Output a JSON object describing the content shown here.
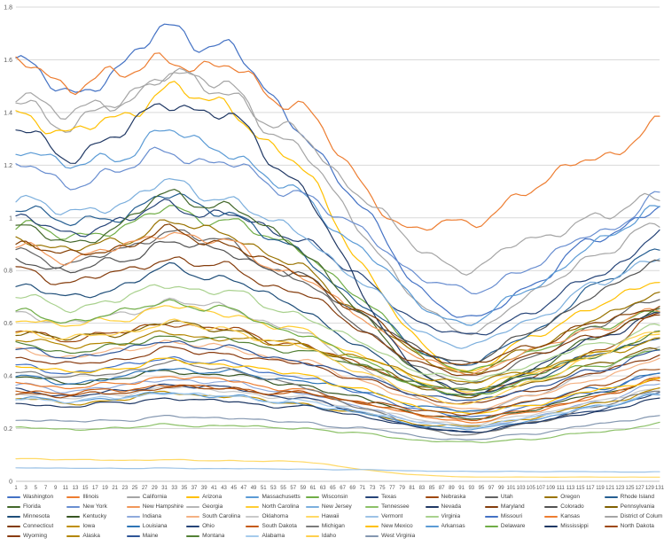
{
  "chart_data": {
    "type": "line",
    "title": "",
    "xlabel": "",
    "ylabel": "",
    "x_range": [
      1,
      131
    ],
    "ylim": [
      0,
      1.8
    ],
    "grid": "horizontal",
    "legend_position": "bottom",
    "background": "#FFFFFF",
    "gridline_color": "#D9D9D9",
    "axis_line_color": "#BFBFBF",
    "tick_label_color": "#595959",
    "y_ticks": [
      "0",
      "0.2",
      "0.4",
      "0.6",
      "0.8",
      "1",
      "1.2",
      "1.4",
      "1.6",
      "1.8"
    ],
    "x_tick_labels": [
      1,
      3,
      5,
      7,
      9,
      11,
      13,
      15,
      17,
      19,
      21,
      23,
      25,
      27,
      29,
      31,
      33,
      35,
      37,
      39,
      41,
      43,
      45,
      47,
      49,
      51,
      53,
      55,
      57,
      59,
      61,
      63,
      65,
      67,
      69,
      71,
      73,
      75,
      77,
      79,
      81,
      83,
      85,
      87,
      89,
      91,
      93,
      95,
      97,
      99,
      101,
      103,
      105,
      107,
      109,
      111,
      113,
      115,
      117,
      119,
      121,
      123,
      125,
      127,
      129,
      131
    ],
    "keypoint_x": [
      1,
      15,
      30,
      45,
      60,
      75,
      90,
      105,
      120,
      131
    ],
    "series": [
      {
        "name": "Washington",
        "color": "#4472C4",
        "keypoints": [
          1.56,
          1.5,
          1.68,
          1.62,
          1.3,
          0.92,
          0.63,
          0.74,
          0.94,
          1.04
        ]
      },
      {
        "name": "Illinois",
        "color": "#ED7D31",
        "keypoints": [
          1.56,
          1.53,
          1.58,
          1.55,
          1.4,
          1.02,
          0.98,
          1.1,
          1.25,
          1.35
        ]
      },
      {
        "name": "California",
        "color": "#A5A5A5",
        "keypoints": [
          1.42,
          1.38,
          1.53,
          1.47,
          1.22,
          0.84,
          0.58,
          0.7,
          0.88,
          0.97
        ]
      },
      {
        "name": "Arizona",
        "color": "#FFC000",
        "keypoints": [
          1.38,
          1.34,
          1.46,
          1.4,
          1.15,
          0.7,
          0.43,
          0.54,
          0.68,
          0.76
        ]
      },
      {
        "name": "Massachusetts",
        "color": "#5B9BD5",
        "keypoints": [
          1.25,
          1.21,
          1.3,
          1.24,
          1.06,
          0.8,
          0.61,
          0.73,
          0.92,
          1.05
        ]
      },
      {
        "name": "Wisconsin",
        "color": "#70AD47",
        "keypoints": [
          0.96,
          0.94,
          1.01,
          0.98,
          0.86,
          0.61,
          0.43,
          0.49,
          0.59,
          0.66
        ]
      },
      {
        "name": "Texas",
        "color": "#264478",
        "keypoints": [
          0.98,
          0.96,
          1.03,
          1.0,
          0.91,
          0.7,
          0.56,
          0.64,
          0.8,
          0.94
        ]
      },
      {
        "name": "Nebraska",
        "color": "#9E480E",
        "keypoints": [
          0.56,
          0.55,
          0.59,
          0.57,
          0.51,
          0.41,
          0.34,
          0.39,
          0.51,
          0.63
        ]
      },
      {
        "name": "Utah",
        "color": "#636363",
        "keypoints": [
          0.86,
          0.84,
          0.93,
          0.89,
          0.74,
          0.52,
          0.38,
          0.46,
          0.61,
          0.69
        ]
      },
      {
        "name": "Oregon",
        "color": "#997300",
        "keypoints": [
          0.91,
          0.89,
          0.96,
          0.93,
          0.79,
          0.57,
          0.42,
          0.5,
          0.63,
          0.71
        ]
      },
      {
        "name": "Rhode Island",
        "color": "#255E91",
        "keypoints": [
          1.03,
          0.99,
          1.06,
          1.01,
          0.84,
          0.6,
          0.45,
          0.56,
          0.76,
          0.89
        ]
      },
      {
        "name": "Florida",
        "color": "#43682B",
        "keypoints": [
          0.95,
          0.92,
          1.06,
          1.03,
          0.86,
          0.54,
          0.35,
          0.42,
          0.56,
          0.66
        ]
      },
      {
        "name": "New York",
        "color": "#698ED0",
        "keypoints": [
          1.18,
          1.15,
          1.23,
          1.19,
          1.08,
          0.88,
          0.73,
          0.81,
          0.96,
          1.08
        ]
      },
      {
        "name": "New Hampshire",
        "color": "#F1975A",
        "keypoints": [
          0.88,
          0.86,
          0.93,
          0.89,
          0.76,
          0.56,
          0.42,
          0.49,
          0.59,
          0.65
        ]
      },
      {
        "name": "Georgia",
        "color": "#B7B7B7",
        "keypoints": [
          0.63,
          0.61,
          0.67,
          0.65,
          0.55,
          0.38,
          0.27,
          0.32,
          0.43,
          0.51
        ]
      },
      {
        "name": "North Carolina",
        "color": "#FFCD33",
        "keypoints": [
          0.61,
          0.6,
          0.65,
          0.63,
          0.56,
          0.44,
          0.35,
          0.41,
          0.49,
          0.56
        ]
      },
      {
        "name": "New Jersey",
        "color": "#7CAFDD",
        "keypoints": [
          1.06,
          1.03,
          1.11,
          1.06,
          0.92,
          0.68,
          0.52,
          0.61,
          0.76,
          0.86
        ]
      },
      {
        "name": "Tennessee",
        "color": "#8CC168",
        "keypoints": [
          0.2,
          0.2,
          0.21,
          0.21,
          0.2,
          0.17,
          0.15,
          0.16,
          0.19,
          0.22
        ]
      },
      {
        "name": "Nevada",
        "color": "#203864",
        "keypoints": [
          1.31,
          1.26,
          1.41,
          1.36,
          1.08,
          0.58,
          0.34,
          0.42,
          0.56,
          0.63
        ]
      },
      {
        "name": "Maryland",
        "color": "#843C0C",
        "keypoints": [
          0.79,
          0.77,
          0.83,
          0.8,
          0.7,
          0.52,
          0.41,
          0.47,
          0.57,
          0.63
        ]
      },
      {
        "name": "Colorado",
        "color": "#525252",
        "keypoints": [
          0.83,
          0.81,
          0.89,
          0.86,
          0.76,
          0.58,
          0.46,
          0.56,
          0.73,
          0.83
        ]
      },
      {
        "name": "Pennsylvania",
        "color": "#7F6000",
        "keypoints": [
          0.56,
          0.55,
          0.59,
          0.57,
          0.51,
          0.41,
          0.33,
          0.37,
          0.45,
          0.51
        ]
      },
      {
        "name": "Minnesota",
        "color": "#1F4E79",
        "keypoints": [
          0.73,
          0.71,
          0.79,
          0.76,
          0.64,
          0.45,
          0.33,
          0.39,
          0.49,
          0.55
        ]
      },
      {
        "name": "Kentucky",
        "color": "#375623",
        "keypoints": [
          0.39,
          0.38,
          0.41,
          0.4,
          0.36,
          0.29,
          0.24,
          0.27,
          0.34,
          0.39
        ]
      },
      {
        "name": "Indiana",
        "color": "#8FAADC",
        "keypoints": [
          0.36,
          0.35,
          0.38,
          0.37,
          0.33,
          0.26,
          0.21,
          0.24,
          0.31,
          0.37
        ]
      },
      {
        "name": "South Carolina",
        "color": "#F4B183",
        "keypoints": [
          0.49,
          0.48,
          0.52,
          0.5,
          0.45,
          0.35,
          0.28,
          0.32,
          0.4,
          0.46
        ]
      },
      {
        "name": "Oklahoma",
        "color": "#C9C9C9",
        "keypoints": [
          0.33,
          0.32,
          0.35,
          0.34,
          0.31,
          0.26,
          0.22,
          0.25,
          0.31,
          0.35
        ]
      },
      {
        "name": "Hawaii",
        "color": "#FFD966",
        "keypoints": [
          0.085,
          0.082,
          0.08,
          0.078,
          0.072,
          0.035,
          0.018,
          0.016,
          0.016,
          0.016
        ]
      },
      {
        "name": "Vermont",
        "color": "#9DC3E6",
        "keypoints": [
          0.05,
          0.05,
          0.049,
          0.048,
          0.046,
          0.042,
          0.038,
          0.037,
          0.036,
          0.036
        ]
      },
      {
        "name": "Virginia",
        "color": "#A9D18E",
        "keypoints": [
          0.69,
          0.67,
          0.73,
          0.71,
          0.62,
          0.48,
          0.39,
          0.44,
          0.53,
          0.59
        ]
      },
      {
        "name": "Missouri",
        "color": "#4472C4",
        "keypoints": [
          0.43,
          0.42,
          0.46,
          0.44,
          0.39,
          0.31,
          0.25,
          0.28,
          0.35,
          0.41
        ]
      },
      {
        "name": "Kansas",
        "color": "#ED7D31",
        "keypoints": [
          0.37,
          0.36,
          0.39,
          0.38,
          0.34,
          0.28,
          0.23,
          0.26,
          0.33,
          0.39
        ]
      },
      {
        "name": "District of Columbia",
        "color": "#A5A5A5",
        "keypoints": [
          1.46,
          1.41,
          1.51,
          1.46,
          1.28,
          1.0,
          0.82,
          0.91,
          1.01,
          1.09
        ]
      },
      {
        "name": "Connecticut",
        "color": "#833C00",
        "keypoints": [
          0.89,
          0.87,
          0.93,
          0.89,
          0.77,
          0.58,
          0.45,
          0.51,
          0.61,
          0.67
        ]
      },
      {
        "name": "Iowa",
        "color": "#BF8F00",
        "keypoints": [
          0.31,
          0.3,
          0.33,
          0.32,
          0.29,
          0.24,
          0.21,
          0.24,
          0.3,
          0.35
        ]
      },
      {
        "name": "Louisiana",
        "color": "#2E75B6",
        "keypoints": [
          0.39,
          0.38,
          0.42,
          0.41,
          0.38,
          0.32,
          0.27,
          0.3,
          0.36,
          0.41
        ]
      },
      {
        "name": "Ohio",
        "color": "#264478",
        "keypoints": [
          0.34,
          0.33,
          0.36,
          0.35,
          0.31,
          0.24,
          0.19,
          0.22,
          0.28,
          0.33
        ]
      },
      {
        "name": "South Dakota",
        "color": "#C55A11",
        "keypoints": [
          0.34,
          0.34,
          0.36,
          0.35,
          0.33,
          0.28,
          0.24,
          0.27,
          0.33,
          0.38
        ]
      },
      {
        "name": "Michigan",
        "color": "#7B7B7B",
        "keypoints": [
          0.41,
          0.4,
          0.44,
          0.42,
          0.35,
          0.25,
          0.18,
          0.22,
          0.29,
          0.35
        ]
      },
      {
        "name": "New Mexico",
        "color": "#FFC000",
        "keypoints": [
          0.43,
          0.42,
          0.45,
          0.44,
          0.4,
          0.32,
          0.26,
          0.29,
          0.35,
          0.39
        ]
      },
      {
        "name": "Arkansas",
        "color": "#5B9BD5",
        "keypoints": [
          0.31,
          0.31,
          0.33,
          0.32,
          0.29,
          0.24,
          0.2,
          0.23,
          0.29,
          0.33
        ]
      },
      {
        "name": "Delaware",
        "color": "#70AD47",
        "keypoints": [
          0.63,
          0.62,
          0.67,
          0.64,
          0.55,
          0.42,
          0.33,
          0.38,
          0.45,
          0.5
        ]
      },
      {
        "name": "Mississippi",
        "color": "#1F3864",
        "keypoints": [
          0.29,
          0.29,
          0.31,
          0.3,
          0.28,
          0.23,
          0.19,
          0.22,
          0.27,
          0.31
        ]
      },
      {
        "name": "North Dakota",
        "color": "#9E480E",
        "keypoints": [
          0.33,
          0.33,
          0.35,
          0.35,
          0.33,
          0.29,
          0.26,
          0.3,
          0.37,
          0.43
        ]
      },
      {
        "name": "Wyoming",
        "color": "#8A3C10",
        "keypoints": [
          0.46,
          0.45,
          0.49,
          0.48,
          0.44,
          0.36,
          0.3,
          0.34,
          0.42,
          0.48
        ]
      },
      {
        "name": "Alaska",
        "color": "#B38600",
        "keypoints": [
          0.53,
          0.52,
          0.55,
          0.54,
          0.51,
          0.44,
          0.38,
          0.42,
          0.49,
          0.54
        ]
      },
      {
        "name": "Maine",
        "color": "#2F5597",
        "keypoints": [
          0.49,
          0.48,
          0.52,
          0.5,
          0.45,
          0.37,
          0.31,
          0.35,
          0.43,
          0.5
        ]
      },
      {
        "name": "Montana",
        "color": "#538135",
        "keypoints": [
          0.51,
          0.5,
          0.54,
          0.53,
          0.49,
          0.41,
          0.35,
          0.4,
          0.49,
          0.56
        ]
      },
      {
        "name": "Alabama",
        "color": "#A6CBEC",
        "keypoints": [
          0.31,
          0.31,
          0.33,
          0.32,
          0.3,
          0.25,
          0.21,
          0.24,
          0.29,
          0.33
        ]
      },
      {
        "name": "Idaho",
        "color": "#FFD04D",
        "keypoints": [
          0.56,
          0.55,
          0.59,
          0.57,
          0.5,
          0.38,
          0.3,
          0.37,
          0.49,
          0.58
        ]
      },
      {
        "name": "West Virginia",
        "color": "#8497B0",
        "keypoints": [
          0.23,
          0.23,
          0.24,
          0.24,
          0.22,
          0.19,
          0.16,
          0.18,
          0.22,
          0.25
        ]
      }
    ]
  }
}
